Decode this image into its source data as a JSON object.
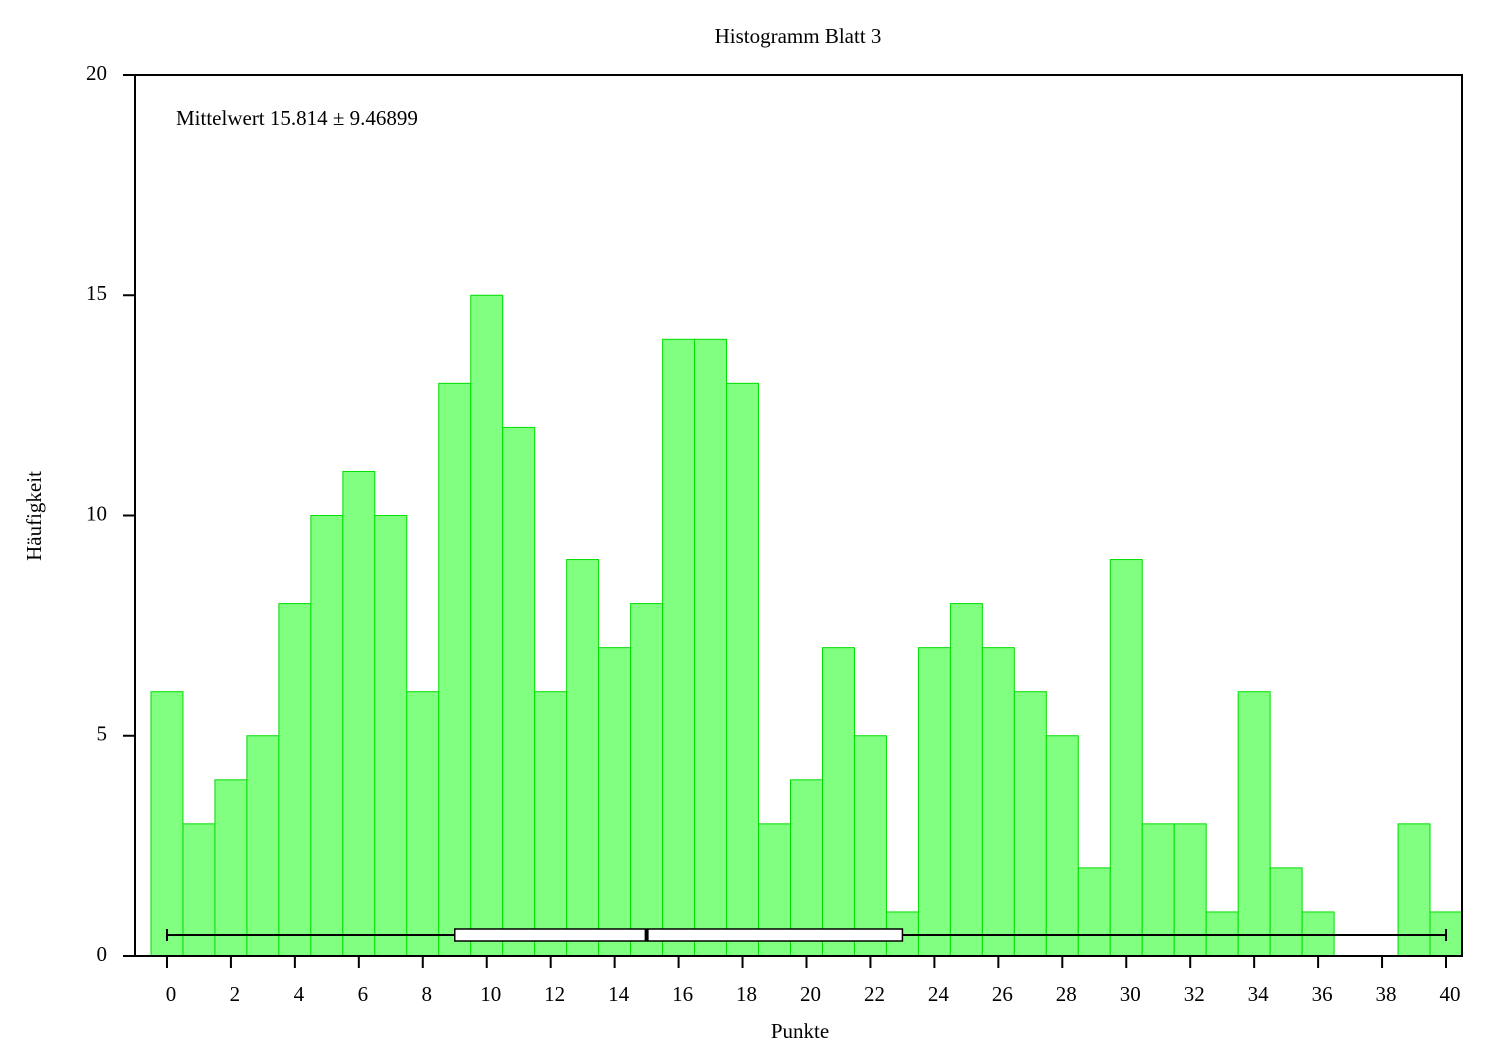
{
  "chart_data": {
    "type": "histogram",
    "title": "Histogramm Blatt 3",
    "x_label": "Punkte",
    "y_label": "Häufigkeit",
    "annotation": "Mittelwert 15.814 ± 9.46899",
    "bins": [
      -0.5,
      0.5,
      1.5,
      2.5,
      3.5,
      4.5,
      5.5,
      6.5,
      7.5,
      8.5,
      9.5,
      10.5,
      11.5,
      12.5,
      13.5,
      14.5,
      15.5,
      16.5,
      17.5,
      18.5,
      19.5,
      20.5,
      21.5,
      22.5,
      23.5,
      24.5,
      25.5,
      26.5,
      27.5,
      28.5,
      29.5,
      30.5,
      31.5,
      32.5,
      33.5,
      34.5,
      35.5,
      36.5,
      37.5,
      38.5,
      39.5,
      40.5
    ],
    "values": [
      6,
      3,
      4,
      5,
      8,
      10,
      11,
      10,
      6,
      13,
      15,
      12,
      6,
      9,
      7,
      8,
      14,
      14,
      13,
      3,
      4,
      7,
      5,
      1,
      7,
      8,
      7,
      6,
      5,
      2,
      9,
      3,
      3,
      1,
      6,
      2,
      1,
      0,
      0,
      3,
      1
    ],
    "color": "#80ff80",
    "edge_color": "#00dd00",
    "boxplot": {
      "min": 0,
      "q1": 9,
      "median": 15,
      "q3": 23,
      "max": 40
    },
    "xlim": [
      -1,
      40.5
    ],
    "xticks": [
      0,
      2,
      4,
      6,
      8,
      10,
      12,
      14,
      16,
      18,
      20,
      22,
      24,
      26,
      28,
      30,
      32,
      34,
      36,
      38,
      40
    ],
    "ylim": [
      0,
      20
    ],
    "yticks": [
      0,
      5,
      10,
      15,
      20
    ],
    "grid": false
  }
}
